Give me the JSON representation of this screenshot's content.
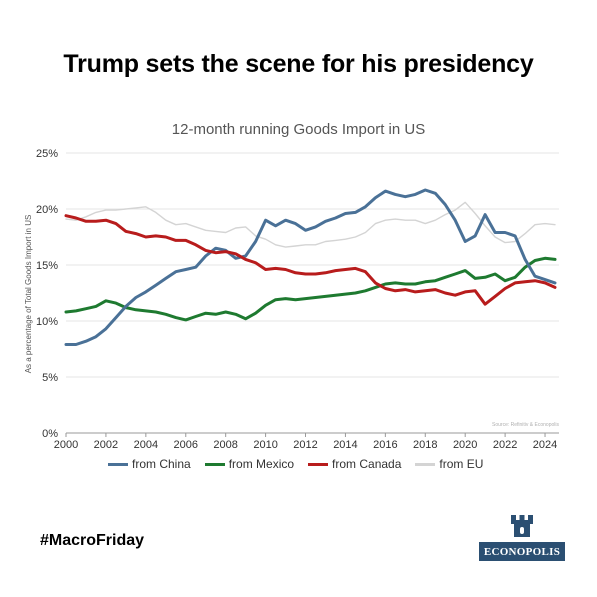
{
  "headline": "Trump sets the scene for his presidency",
  "hashtag": "#MacroFriday",
  "logo": {
    "text": "ECONOPOLIS",
    "icon": "castle-tower-icon",
    "color": "#2b4f72"
  },
  "chart_data": {
    "type": "line",
    "title": "12-month running Goods Import in US",
    "ylabel": "As a percentage of Total Goods Import in US",
    "xlabel": "",
    "source": "Source: Refinitiv & Econopolis",
    "xlim": [
      2000,
      2024.7
    ],
    "ylim": [
      0,
      25
    ],
    "x_ticks": [
      2000,
      2002,
      2004,
      2006,
      2008,
      2010,
      2012,
      2014,
      2016,
      2018,
      2020,
      2022,
      2024
    ],
    "y_ticks": [
      0,
      5,
      10,
      15,
      20,
      25
    ],
    "y_tick_labels": [
      "0%",
      "5%",
      "10%",
      "15%",
      "20%",
      "25%"
    ],
    "grid": true,
    "legend_position": "bottom",
    "series": [
      {
        "name": "from China",
        "color": "#4a7197",
        "x": [
          2000,
          2000.5,
          2001,
          2001.5,
          2002,
          2002.5,
          2003,
          2003.5,
          2004,
          2004.5,
          2005,
          2005.5,
          2006,
          2006.5,
          2007,
          2007.5,
          2008,
          2008.5,
          2009,
          2009.5,
          2010,
          2010.5,
          2011,
          2011.5,
          2012,
          2012.5,
          2013,
          2013.5,
          2014,
          2014.5,
          2015,
          2015.5,
          2016,
          2016.5,
          2017,
          2017.5,
          2018,
          2018.5,
          2019,
          2019.5,
          2020,
          2020.5,
          2021,
          2021.5,
          2022,
          2022.5,
          2023,
          2023.5,
          2024,
          2024.5
        ],
        "y": [
          7.9,
          7.9,
          8.2,
          8.6,
          9.3,
          10.3,
          11.3,
          12.1,
          12.6,
          13.2,
          13.8,
          14.4,
          14.6,
          14.8,
          15.8,
          16.5,
          16.3,
          15.6,
          15.8,
          17.1,
          19.0,
          18.5,
          19.0,
          18.7,
          18.1,
          18.4,
          18.9,
          19.2,
          19.6,
          19.7,
          20.2,
          21.0,
          21.6,
          21.3,
          21.1,
          21.3,
          21.7,
          21.4,
          20.4,
          19.0,
          17.1,
          17.6,
          19.5,
          17.9,
          17.9,
          17.6,
          15.5,
          14.0,
          13.7,
          13.4
        ]
      },
      {
        "name": "from Mexico",
        "color": "#1e7a30",
        "x": [
          2000,
          2000.5,
          2001,
          2001.5,
          2002,
          2002.5,
          2003,
          2003.5,
          2004,
          2004.5,
          2005,
          2005.5,
          2006,
          2006.5,
          2007,
          2007.5,
          2008,
          2008.5,
          2009,
          2009.5,
          2010,
          2010.5,
          2011,
          2011.5,
          2012,
          2012.5,
          2013,
          2013.5,
          2014,
          2014.5,
          2015,
          2015.5,
          2016,
          2016.5,
          2017,
          2017.5,
          2018,
          2018.5,
          2019,
          2019.5,
          2020,
          2020.5,
          2021,
          2021.5,
          2022,
          2022.5,
          2023,
          2023.5,
          2024,
          2024.5
        ],
        "y": [
          10.8,
          10.9,
          11.1,
          11.3,
          11.8,
          11.6,
          11.2,
          11.0,
          10.9,
          10.8,
          10.6,
          10.3,
          10.1,
          10.4,
          10.7,
          10.6,
          10.8,
          10.6,
          10.2,
          10.7,
          11.4,
          11.9,
          12.0,
          11.9,
          12.0,
          12.1,
          12.2,
          12.3,
          12.4,
          12.5,
          12.7,
          13.0,
          13.3,
          13.4,
          13.3,
          13.3,
          13.5,
          13.6,
          13.9,
          14.2,
          14.5,
          13.8,
          13.9,
          14.2,
          13.6,
          13.9,
          14.8,
          15.4,
          15.6,
          15.5
        ]
      },
      {
        "name": "from Canada",
        "color": "#b81c1c",
        "x": [
          2000,
          2000.5,
          2001,
          2001.5,
          2002,
          2002.5,
          2003,
          2003.5,
          2004,
          2004.5,
          2005,
          2005.5,
          2006,
          2006.5,
          2007,
          2007.5,
          2008,
          2008.5,
          2009,
          2009.5,
          2010,
          2010.5,
          2011,
          2011.5,
          2012,
          2012.5,
          2013,
          2013.5,
          2014,
          2014.5,
          2015,
          2015.5,
          2016,
          2016.5,
          2017,
          2017.5,
          2018,
          2018.5,
          2019,
          2019.5,
          2020,
          2020.5,
          2021,
          2021.5,
          2022,
          2022.5,
          2023,
          2023.5,
          2024,
          2024.5
        ],
        "y": [
          19.4,
          19.2,
          18.9,
          18.9,
          19.0,
          18.7,
          18.0,
          17.8,
          17.5,
          17.6,
          17.5,
          17.2,
          17.2,
          16.8,
          16.3,
          16.1,
          16.2,
          16.0,
          15.5,
          15.2,
          14.6,
          14.7,
          14.6,
          14.3,
          14.2,
          14.2,
          14.3,
          14.5,
          14.6,
          14.7,
          14.4,
          13.4,
          12.9,
          12.7,
          12.8,
          12.6,
          12.7,
          12.8,
          12.5,
          12.3,
          12.6,
          12.7,
          11.5,
          12.2,
          12.9,
          13.4,
          13.5,
          13.6,
          13.4,
          13.0
        ]
      },
      {
        "name": "from EU",
        "color": "#d4d4d4",
        "x": [
          2000,
          2000.5,
          2001,
          2001.5,
          2002,
          2002.5,
          2003,
          2003.5,
          2004,
          2004.5,
          2005,
          2005.5,
          2006,
          2006.5,
          2007,
          2007.5,
          2008,
          2008.5,
          2009,
          2009.5,
          2010,
          2010.5,
          2011,
          2011.5,
          2012,
          2012.5,
          2013,
          2013.5,
          2014,
          2014.5,
          2015,
          2015.5,
          2016,
          2016.5,
          2017,
          2017.5,
          2018,
          2018.5,
          2019,
          2019.5,
          2020,
          2020.5,
          2021,
          2021.5,
          2022,
          2022.5,
          2023,
          2023.5,
          2024,
          2024.5
        ],
        "y": [
          19.1,
          19.0,
          19.3,
          19.7,
          19.9,
          19.9,
          20.0,
          20.1,
          20.2,
          19.7,
          19.0,
          18.6,
          18.7,
          18.4,
          18.1,
          18.0,
          17.9,
          18.3,
          18.4,
          17.6,
          17.3,
          16.8,
          16.6,
          16.7,
          16.8,
          16.8,
          17.1,
          17.2,
          17.3,
          17.5,
          17.9,
          18.7,
          19.0,
          19.1,
          19.0,
          19.0,
          18.7,
          19.0,
          19.5,
          19.9,
          20.6,
          19.6,
          18.5,
          17.5,
          17.0,
          17.1,
          17.8,
          18.6,
          18.7,
          18.6
        ]
      }
    ]
  }
}
